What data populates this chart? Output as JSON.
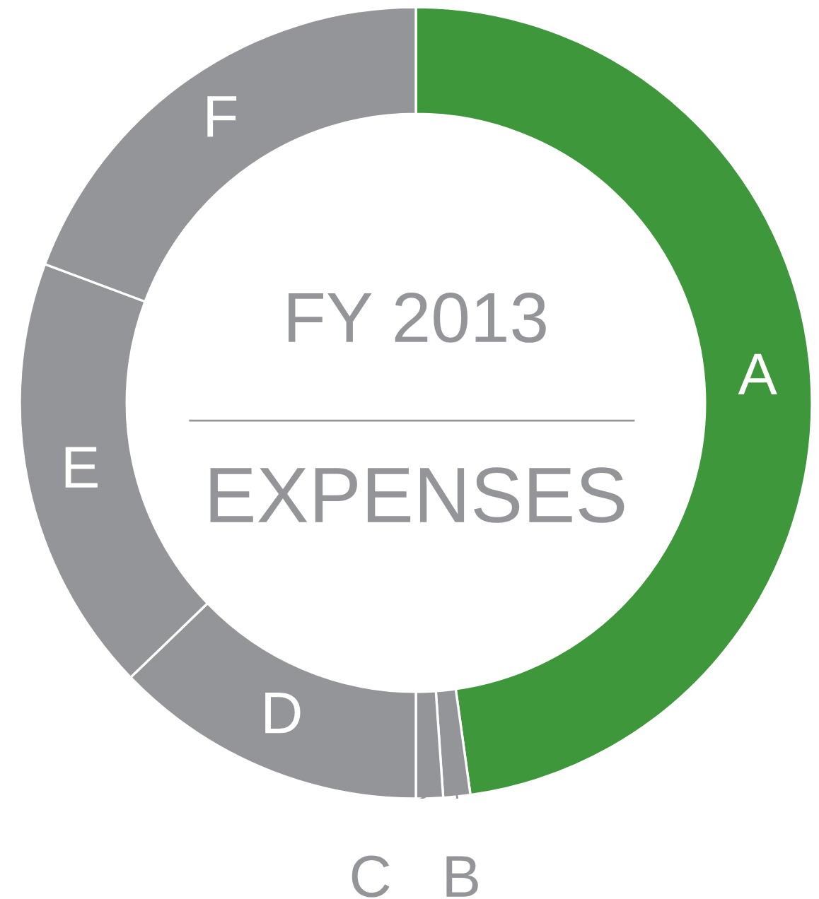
{
  "chart_data": {
    "type": "donut",
    "title": "FY 2013",
    "subtitle": "EXPENSES",
    "categories": [
      "A",
      "B",
      "C",
      "D",
      "E",
      "F"
    ],
    "values": [
      47.8,
      1.1,
      1.1,
      12.8,
      17.9,
      19.3
    ],
    "colors": [
      "#3f973b",
      "#939598",
      "#939598",
      "#939598",
      "#939598",
      "#939598"
    ],
    "legend": false
  }
}
